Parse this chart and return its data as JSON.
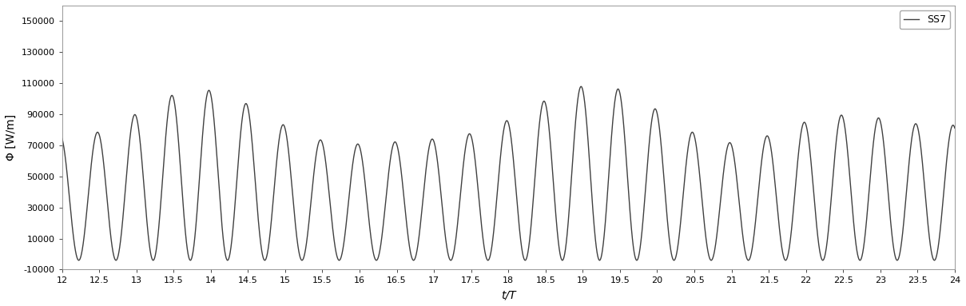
{
  "xlim": [
    12,
    24
  ],
  "ylim": [
    -10000,
    160000
  ],
  "yticks": [
    -10000,
    10000,
    30000,
    50000,
    70000,
    90000,
    110000,
    130000,
    150000
  ],
  "xticks": [
    12,
    12.5,
    13,
    13.5,
    14,
    14.5,
    15,
    15.5,
    16,
    16.5,
    17,
    17.5,
    18,
    18.5,
    19,
    19.5,
    20,
    20.5,
    21,
    21.5,
    22,
    22.5,
    23,
    23.5,
    24
  ],
  "xlabel": "t/T",
  "ylabel": "Φ [W/m]",
  "legend_label": "SS7",
  "line_color": "#404040",
  "line_width": 1.0,
  "background_color": "#ffffff",
  "t_start": 12.0,
  "t_end": 24.0,
  "n_points": 8000,
  "figsize": [
    12.09,
    3.83
  ],
  "dpi": 100
}
